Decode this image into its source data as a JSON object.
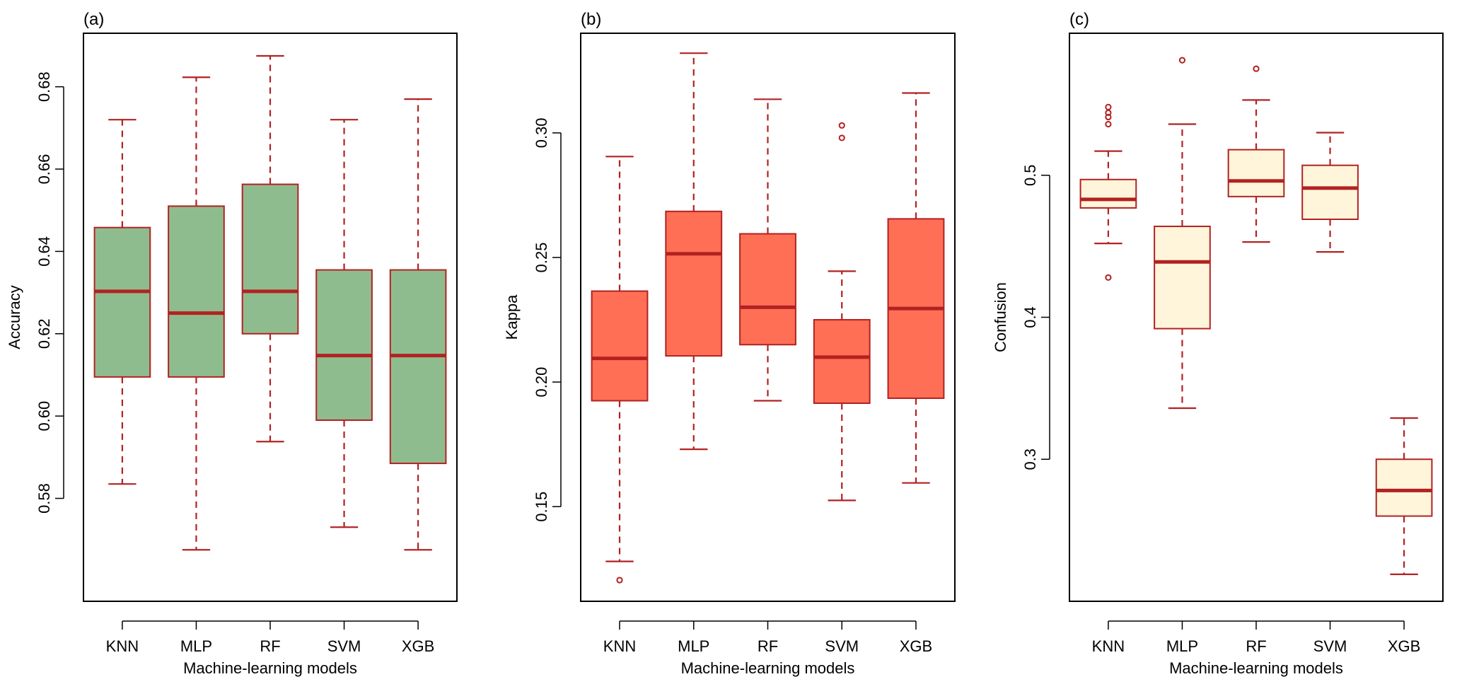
{
  "chart_data": [
    {
      "type": "boxplot",
      "panel_label": "(a)",
      "xlabel": "Machine-learning models",
      "ylabel": "Accuracy",
      "categories": [
        "KNN",
        "MLP",
        "RF",
        "SVM",
        "XGB"
      ],
      "ylim": [
        0.555,
        0.693
      ],
      "yticks": [
        0.58,
        0.6,
        0.62,
        0.64,
        0.66,
        0.68
      ],
      "ytick_labels": [
        "0.58",
        "0.60",
        "0.62",
        "0.64",
        "0.66",
        "0.68"
      ],
      "fill_color": "#8FBC8F",
      "line_color": "#B22222",
      "boxes": [
        {
          "category": "KNN",
          "whisker_low": 0.5835,
          "q1": 0.6095,
          "median": 0.6303,
          "q3": 0.6458,
          "whisker_high": 0.672,
          "outliers": []
        },
        {
          "category": "MLP",
          "whisker_low": 0.5675,
          "q1": 0.6095,
          "median": 0.625,
          "q3": 0.651,
          "whisker_high": 0.6823,
          "outliers": []
        },
        {
          "category": "RF",
          "whisker_low": 0.5938,
          "q1": 0.62,
          "median": 0.6303,
          "q3": 0.6563,
          "whisker_high": 0.6875,
          "outliers": []
        },
        {
          "category": "SVM",
          "whisker_low": 0.573,
          "q1": 0.599,
          "median": 0.6147,
          "q3": 0.6355,
          "whisker_high": 0.672,
          "outliers": []
        },
        {
          "category": "XGB",
          "whisker_low": 0.5675,
          "q1": 0.5885,
          "median": 0.6147,
          "q3": 0.6355,
          "whisker_high": 0.677,
          "outliers": []
        }
      ]
    },
    {
      "type": "boxplot",
      "panel_label": "(b)",
      "xlabel": "Machine-learning models",
      "ylabel": "Kappa",
      "categories": [
        "KNN",
        "MLP",
        "RF",
        "SVM",
        "XGB"
      ],
      "ylim": [
        0.112,
        0.34
      ],
      "yticks": [
        0.15,
        0.2,
        0.25,
        0.3
      ],
      "ytick_labels": [
        "0.15",
        "0.20",
        "0.25",
        "0.30"
      ],
      "fill_color": "#FF6F55",
      "line_color": "#B22222",
      "boxes": [
        {
          "category": "KNN",
          "whisker_low": 0.128,
          "q1": 0.1925,
          "median": 0.2095,
          "q3": 0.2365,
          "whisker_high": 0.2905,
          "outliers": [
            0.1205
          ]
        },
        {
          "category": "MLP",
          "whisker_low": 0.173,
          "q1": 0.2105,
          "median": 0.2515,
          "q3": 0.2685,
          "whisker_high": 0.332,
          "outliers": []
        },
        {
          "category": "RF",
          "whisker_low": 0.1925,
          "q1": 0.215,
          "median": 0.23,
          "q3": 0.2595,
          "whisker_high": 0.3135,
          "outliers": []
        },
        {
          "category": "SVM",
          "whisker_low": 0.1525,
          "q1": 0.1915,
          "median": 0.21,
          "q3": 0.225,
          "whisker_high": 0.2445,
          "outliers": [
            0.298,
            0.303
          ]
        },
        {
          "category": "XGB",
          "whisker_low": 0.1595,
          "q1": 0.1935,
          "median": 0.2295,
          "q3": 0.2655,
          "whisker_high": 0.316,
          "outliers": []
        }
      ]
    },
    {
      "type": "boxplot",
      "panel_label": "(c)",
      "xlabel": "Machine-learning models",
      "ylabel": "Confusion",
      "categories": [
        "KNN",
        "MLP",
        "RF",
        "SVM",
        "XGB"
      ],
      "ylim": [
        0.2,
        0.6
      ],
      "yticks": [
        0.3,
        0.4,
        0.5
      ],
      "ytick_labels": [
        "0.3",
        "0.4",
        "0.5"
      ],
      "fill_color": "#FFF5DA",
      "line_color": "#B22222",
      "boxes": [
        {
          "category": "KNN",
          "whisker_low": 0.452,
          "q1": 0.477,
          "median": 0.483,
          "q3": 0.497,
          "whisker_high": 0.517,
          "outliers": [
            0.428,
            0.536,
            0.541,
            0.544,
            0.548
          ]
        },
        {
          "category": "MLP",
          "whisker_low": 0.336,
          "q1": 0.392,
          "median": 0.439,
          "q3": 0.464,
          "whisker_high": 0.536,
          "outliers": [
            0.581
          ]
        },
        {
          "category": "RF",
          "whisker_low": 0.453,
          "q1": 0.485,
          "median": 0.496,
          "q3": 0.518,
          "whisker_high": 0.553,
          "outliers": [
            0.575
          ]
        },
        {
          "category": "SVM",
          "whisker_low": 0.446,
          "q1": 0.469,
          "median": 0.491,
          "q3": 0.507,
          "whisker_high": 0.53,
          "outliers": []
        },
        {
          "category": "XGB",
          "whisker_low": 0.219,
          "q1": 0.26,
          "median": 0.278,
          "q3": 0.3,
          "whisker_high": 0.329,
          "outliers": []
        }
      ]
    }
  ]
}
